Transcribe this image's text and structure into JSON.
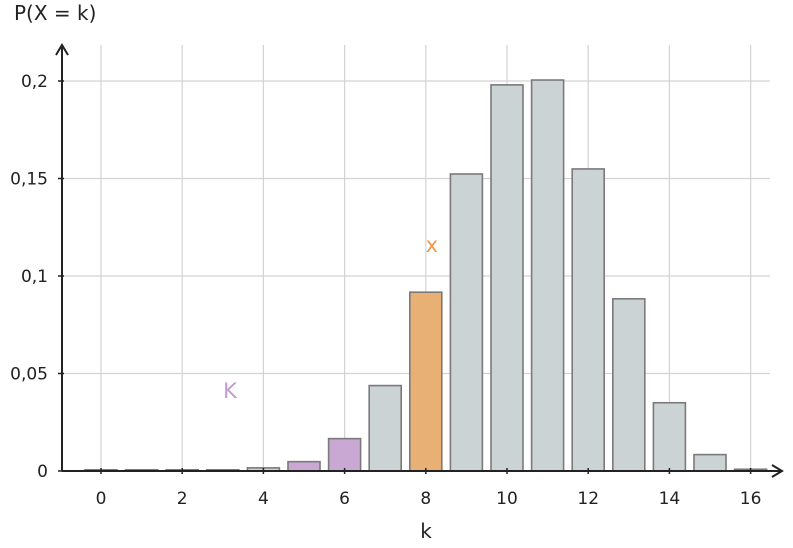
{
  "chart_data": {
    "type": "bar",
    "title": "",
    "xlabel": "k",
    "ylabel": "P(X = k)",
    "x": [
      0,
      1,
      2,
      3,
      4,
      5,
      6,
      7,
      8,
      9,
      10,
      11,
      12,
      13,
      14,
      15,
      16
    ],
    "values": [
      0.0,
      0.0001,
      0.0003,
      0.0006,
      0.0016,
      0.0048,
      0.0166,
      0.0438,
      0.0917,
      0.1523,
      0.198,
      0.2005,
      0.1549,
      0.0883,
      0.035,
      0.0084,
      0.0009
    ],
    "xticks": [
      0,
      2,
      4,
      6,
      8,
      10,
      12,
      14,
      16
    ],
    "xtick_labels": [
      "0",
      "2",
      "4",
      "6",
      "8",
      "10",
      "12",
      "14",
      "16"
    ],
    "yticks": [
      0,
      0.05,
      0.1,
      0.15,
      0.2
    ],
    "ytick_labels": [
      "0",
      "0,05",
      "0,1",
      "0,15",
      "0,2"
    ],
    "xlim": [
      -1,
      17
    ],
    "ylim": [
      0,
      0.22
    ],
    "grid": true,
    "legend": "none",
    "highlight": {
      "x_value": 8,
      "x_label": "x",
      "k_values": [
        5,
        6
      ],
      "k_label": "K"
    },
    "colors": {
      "default": "#ccd3d5",
      "x_bar": "#e8b075",
      "k_bars": "#c9a8d3",
      "x_label": "#ef9a4d",
      "k_label": "#c39bd0",
      "bar_edge": "#7a7a7a",
      "grid": "#d3d3d3",
      "axis": "#222222"
    }
  }
}
